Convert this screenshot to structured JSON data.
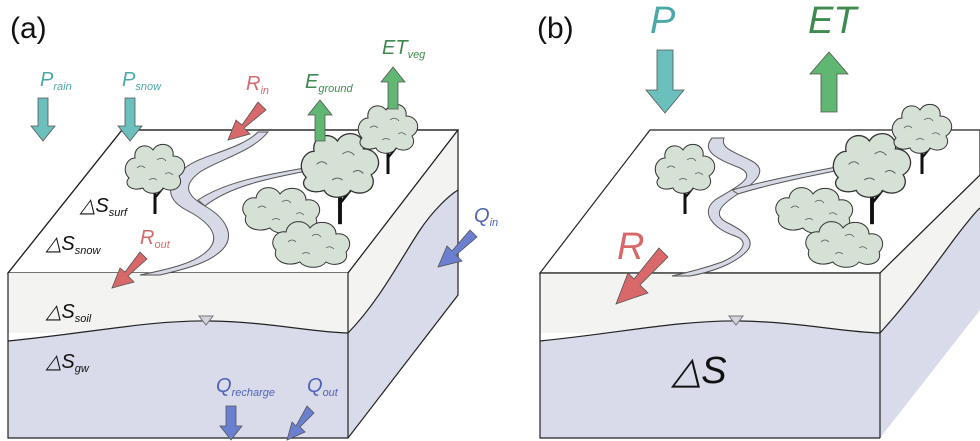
{
  "colors": {
    "precip": "#6bbfbd",
    "et": "#5fb772",
    "runoff": "#d8686a",
    "groundwater_flow": "#6a7fd0",
    "gw_layer": "#d9dbea",
    "soil_layer": "#f3f3f1",
    "river": "#d7d9e6",
    "tree_canopy": "#d4e1d4"
  },
  "panel_a": {
    "label": "(a)",
    "fluxes": {
      "p_rain": {
        "main": "P",
        "sub": "rain"
      },
      "p_snow": {
        "main": "P",
        "sub": "snow"
      },
      "r_in": {
        "main": "R",
        "sub": "in"
      },
      "e_ground": {
        "main": "E",
        "sub": "ground"
      },
      "et_veg": {
        "main": "ET",
        "sub": "veg"
      },
      "q_in": {
        "main": "Q",
        "sub": "in"
      },
      "r_out": {
        "main": "R",
        "sub": "out"
      },
      "q_recharge": {
        "main": "Q",
        "sub": "recharge"
      },
      "q_out": {
        "main": "Q",
        "sub": "out"
      }
    },
    "storages": {
      "s_surf": {
        "main": "△S",
        "sub": "surf"
      },
      "s_snow": {
        "main": "△S",
        "sub": "snow"
      },
      "s_soil": {
        "main": "△S",
        "sub": "soil"
      },
      "s_gw": {
        "main": "△S",
        "sub": "gw"
      }
    }
  },
  "panel_b": {
    "label": "(b)",
    "fluxes": {
      "p": "P",
      "et": "ET",
      "r": "R"
    },
    "storage": "△S"
  }
}
